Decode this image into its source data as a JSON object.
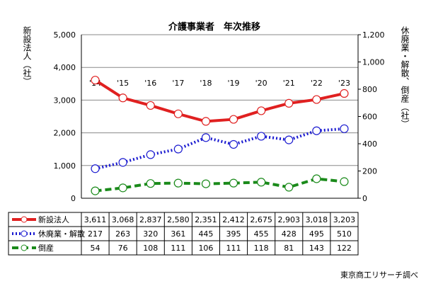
{
  "chart_data": {
    "type": "line",
    "title": "介護事業者　年次推移",
    "categories": [
      "'14",
      "'15",
      "'16",
      "'17",
      "'18",
      "'19",
      "'20",
      "'21",
      "'22",
      "'23"
    ],
    "left_axis": {
      "label": "新設法人（社）",
      "range": [
        0,
        5000
      ],
      "ticks": [
        "0",
        "1,000",
        "2,000",
        "3,000",
        "4,000",
        "5,000"
      ]
    },
    "right_axis": {
      "label": "休廃業・解散、倒産（社）",
      "range": [
        0,
        1200
      ],
      "ticks": [
        "0",
        "200",
        "400",
        "600",
        "800",
        "1,000",
        "1,200"
      ]
    },
    "series": [
      {
        "name": "新設法人",
        "axis": "left",
        "color": "#e02020",
        "dash": "solid",
        "values": [
          3611,
          3068,
          2837,
          2580,
          2351,
          2412,
          2675,
          2903,
          3018,
          3203
        ],
        "labels": [
          "3,611",
          "3,068",
          "2,837",
          "2,580",
          "2,351",
          "2,412",
          "2,675",
          "2,903",
          "3,018",
          "3,203"
        ]
      },
      {
        "name": "休廃業・解散",
        "axis": "right",
        "color": "#1a1ad0",
        "dash": "dotted",
        "values": [
          217,
          263,
          320,
          361,
          445,
          395,
          455,
          428,
          495,
          510
        ],
        "labels": [
          "217",
          "263",
          "320",
          "361",
          "445",
          "395",
          "455",
          "428",
          "495",
          "510"
        ]
      },
      {
        "name": "倒産",
        "axis": "right",
        "color": "#1a8a1a",
        "dash": "dashed",
        "values": [
          54,
          76,
          108,
          111,
          106,
          111,
          118,
          81,
          143,
          122
        ],
        "labels": [
          "54",
          "76",
          "108",
          "111",
          "106",
          "111",
          "118",
          "81",
          "143",
          "122"
        ]
      }
    ],
    "grid": true,
    "legend": "data-table"
  },
  "source": "東京商工リサーチ調べ"
}
